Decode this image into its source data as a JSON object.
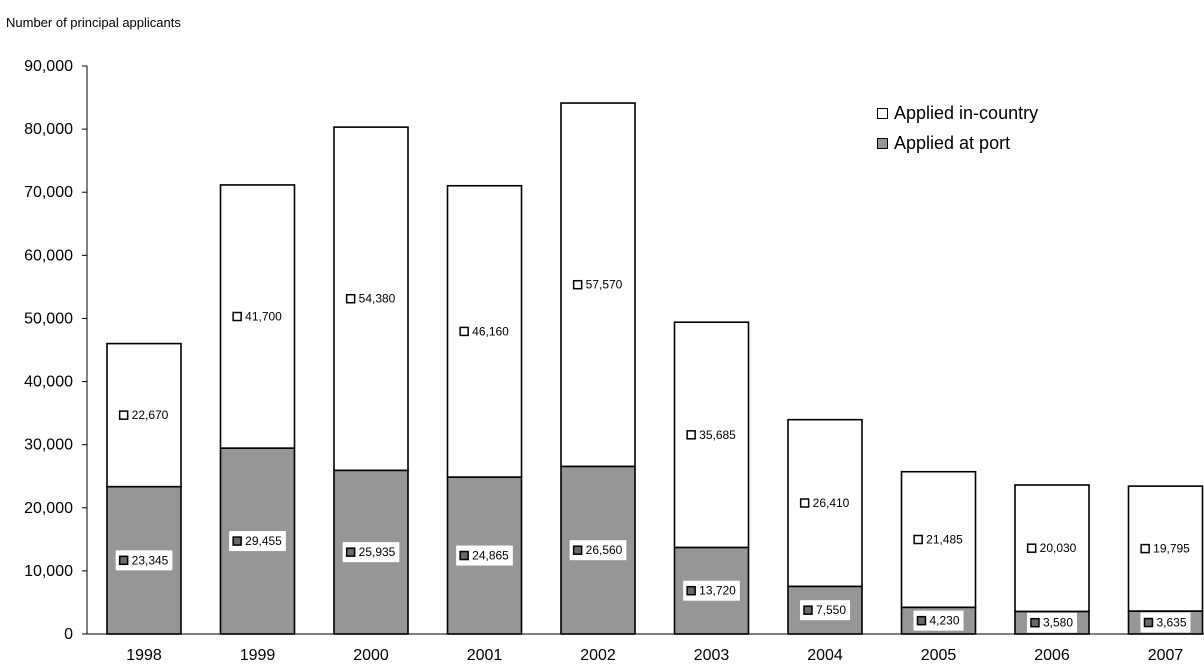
{
  "chart_data": {
    "type": "bar",
    "stacked": true,
    "ylabel": "Number of principal applicants",
    "ylim": [
      0,
      90000
    ],
    "yticks": [
      0,
      10000,
      20000,
      30000,
      40000,
      50000,
      60000,
      70000,
      80000,
      90000
    ],
    "ytick_labels": [
      "0",
      "10,000",
      "20,000",
      "30,000",
      "40,000",
      "50,000",
      "60,000",
      "70,000",
      "80,000",
      "90,000"
    ],
    "categories": [
      "1998",
      "1999",
      "2000",
      "2001",
      "2002",
      "2003",
      "2004",
      "2005",
      "2006",
      "2007"
    ],
    "series": [
      {
        "name": "Applied at port",
        "color": "#969696",
        "values": [
          23345,
          29455,
          25935,
          24865,
          26560,
          13720,
          7550,
          4230,
          3580,
          3635
        ],
        "labels": [
          "23,345",
          "29,455",
          "25,935",
          "24,865",
          "26,560",
          "13,720",
          "7,550",
          "4,230",
          "3,580",
          "3,635"
        ]
      },
      {
        "name": "Applied in-country",
        "color": "#ffffff",
        "values": [
          22670,
          41700,
          54380,
          46160,
          57570,
          35685,
          26410,
          21485,
          20030,
          19795
        ],
        "labels": [
          "22,670",
          "41,700",
          "54,380",
          "46,160",
          "57,570",
          "35,685",
          "26,410",
          "21,485",
          "20,030",
          "19,795"
        ]
      }
    ],
    "legend": {
      "position": "top-right",
      "entries": [
        "Applied in-country",
        "Applied at port"
      ]
    },
    "grid": false
  }
}
